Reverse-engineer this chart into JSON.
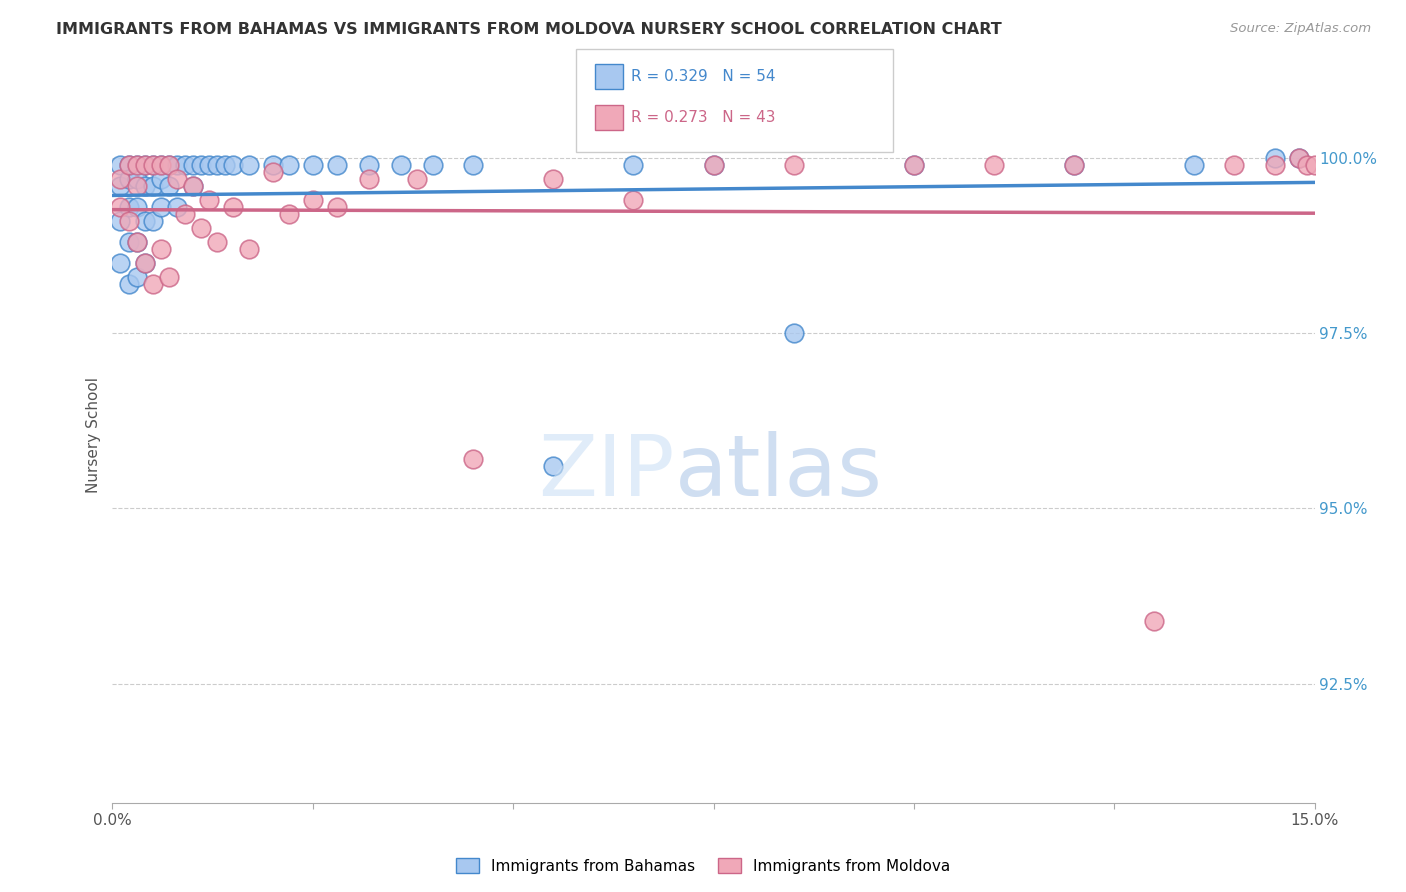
{
  "title": "IMMIGRANTS FROM BAHAMAS VS IMMIGRANTS FROM MOLDOVA NURSERY SCHOOL CORRELATION CHART",
  "source": "Source: ZipAtlas.com",
  "ylabel": "Nursery School",
  "ylabel_right_labels": [
    "100.0%",
    "97.5%",
    "95.0%",
    "92.5%"
  ],
  "ylabel_right_values": [
    1.0,
    0.975,
    0.95,
    0.925
  ],
  "x_min": 0.0,
  "x_max": 0.15,
  "y_min": 0.908,
  "y_max": 1.013,
  "legend_r1": "R = 0.329",
  "legend_n1": "N = 54",
  "legend_r2": "R = 0.273",
  "legend_n2": "N = 43",
  "color_bahamas": "#a8c8f0",
  "color_moldova": "#f0a8b8",
  "color_bahamas_line": "#4488cc",
  "color_moldova_line": "#cc6688",
  "color_right_axis": "#4499cc",
  "watermark_zip": "ZIP",
  "watermark_atlas": "atlas",
  "bahamas_x": [
    0.001,
    0.001,
    0.001,
    0.001,
    0.002,
    0.002,
    0.002,
    0.002,
    0.002,
    0.003,
    0.003,
    0.003,
    0.003,
    0.003,
    0.004,
    0.004,
    0.004,
    0.004,
    0.005,
    0.005,
    0.005,
    0.006,
    0.006,
    0.006,
    0.007,
    0.007,
    0.008,
    0.008,
    0.009,
    0.01,
    0.01,
    0.011,
    0.012,
    0.013,
    0.014,
    0.015,
    0.017,
    0.02,
    0.022,
    0.025,
    0.028,
    0.032,
    0.036,
    0.04,
    0.045,
    0.055,
    0.065,
    0.075,
    0.085,
    0.1,
    0.12,
    0.135,
    0.145,
    0.148
  ],
  "bahamas_y": [
    0.999,
    0.996,
    0.991,
    0.985,
    0.999,
    0.997,
    0.993,
    0.988,
    0.982,
    0.999,
    0.997,
    0.993,
    0.988,
    0.983,
    0.999,
    0.996,
    0.991,
    0.985,
    0.999,
    0.996,
    0.991,
    0.999,
    0.997,
    0.993,
    0.999,
    0.996,
    0.999,
    0.993,
    0.999,
    0.999,
    0.996,
    0.999,
    0.999,
    0.999,
    0.999,
    0.999,
    0.999,
    0.999,
    0.999,
    0.999,
    0.999,
    0.999,
    0.999,
    0.999,
    0.999,
    0.956,
    0.999,
    0.999,
    0.975,
    0.999,
    0.999,
    0.999,
    1.0,
    1.0
  ],
  "moldova_x": [
    0.001,
    0.001,
    0.002,
    0.002,
    0.003,
    0.003,
    0.003,
    0.004,
    0.004,
    0.005,
    0.005,
    0.006,
    0.006,
    0.007,
    0.007,
    0.008,
    0.009,
    0.01,
    0.011,
    0.012,
    0.013,
    0.015,
    0.017,
    0.02,
    0.022,
    0.025,
    0.028,
    0.032,
    0.038,
    0.045,
    0.055,
    0.065,
    0.075,
    0.085,
    0.1,
    0.11,
    0.12,
    0.13,
    0.14,
    0.145,
    0.148,
    0.149,
    0.15
  ],
  "moldova_y": [
    0.997,
    0.993,
    0.999,
    0.991,
    0.999,
    0.996,
    0.988,
    0.999,
    0.985,
    0.999,
    0.982,
    0.999,
    0.987,
    0.999,
    0.983,
    0.997,
    0.992,
    0.996,
    0.99,
    0.994,
    0.988,
    0.993,
    0.987,
    0.998,
    0.992,
    0.994,
    0.993,
    0.997,
    0.997,
    0.957,
    0.997,
    0.994,
    0.999,
    0.999,
    0.999,
    0.999,
    0.999,
    0.934,
    0.999,
    0.999,
    1.0,
    0.999,
    0.999
  ]
}
